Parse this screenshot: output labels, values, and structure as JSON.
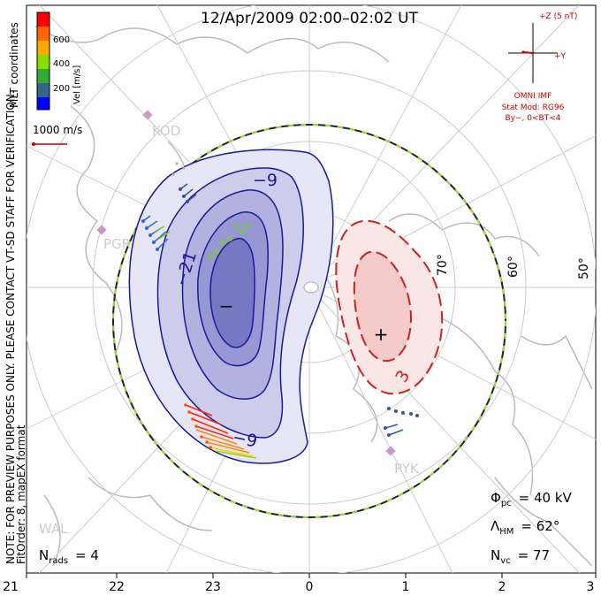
{
  "title": "12/Apr/2009 02:00–02:02 UT",
  "colorbar": {
    "label": "Vel [m/s]",
    "ticks": [
      "600",
      "400",
      "200"
    ],
    "colors": [
      "#ff0000",
      "#ff6600",
      "#ffaa00",
      "#88dd00",
      "#33aa33",
      "#336688",
      "#0000ff"
    ]
  },
  "coordinate_system": "MLT coordinates",
  "scale_vector": "1000 m/s",
  "imf": {
    "plus_z": "+Z (5 nT)",
    "plus_y": "+Y",
    "label": "OMNI IMF",
    "model_line1": "Stat Mod: RG96",
    "model_line2": "By−, 0<BT<4",
    "color": "#cc0000"
  },
  "side_note_line1": "NOTE: FOR PREVIEW PURPOSES ONLY. PLEASE CONTACT VT-SD STAFF FOR VERIFICATION.",
  "side_note_line2": "FitOrder: 8,  mapEX format",
  "stations": [
    "KOD",
    "PGR",
    "PYK",
    "WAL"
  ],
  "latitude_labels": [
    "70°",
    "60°",
    "50°"
  ],
  "contour_labels": {
    "neg_outer": "−9",
    "neg_inner": "−21",
    "neg_lower": "−9",
    "pos": "3",
    "neg_center": "−",
    "pos_center": "+"
  },
  "stats": {
    "phi_pc_sym": "Φ",
    "phi_pc_sub": "pc",
    "phi_pc_value": "= 40 kV",
    "lambda_hm_sym": "Λ",
    "lambda_hm_sub": "HM",
    "lambda_hm_value": "= 62°",
    "n_vc_sym": "N",
    "n_vc_sub": "vc",
    "n_vc_value": "= 77",
    "n_rads_sym": "N",
    "n_rads_sub": "rads",
    "n_rads_value": "= 4"
  },
  "mlt_axis": [
    "21",
    "22",
    "23",
    "0",
    "1",
    "2",
    "3"
  ],
  "colors": {
    "negative_fill": "#7777cc",
    "negative_line": "#1a1a99",
    "positive_fill": "#f2bcbc",
    "positive_line": "#cc2222",
    "boundary": "#222222",
    "boundary_dash": "#99dd33",
    "coastline": "#bbbbbb",
    "grid": "#cccccc"
  }
}
